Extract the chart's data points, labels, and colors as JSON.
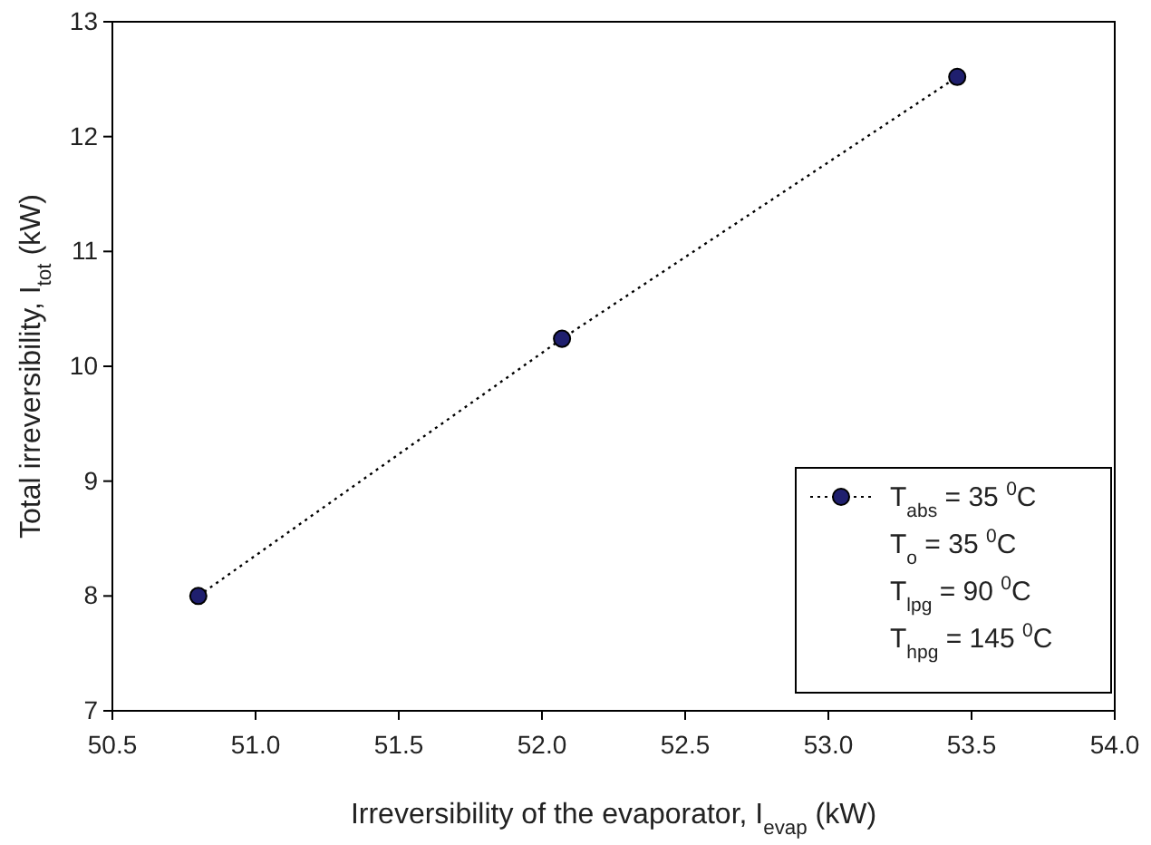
{
  "chart_data": {
    "type": "line",
    "xlabel": "Irreversibility of the evaporator, I$_{evap}$ (kW)",
    "ylabel": "Total irreversibility, I$_{tot}$ (kW)",
    "x": [
      50.8,
      52.07,
      53.45
    ],
    "series": [
      {
        "name": "T$_{abs}$ = 35  $^{0}$C",
        "color": "#1f1f6e",
        "values": [
          8.0,
          10.24,
          12.52
        ]
      }
    ],
    "marker": "circle",
    "line_style": "dotted",
    "legend": "bottom right",
    "grid": false,
    "annotations": [
      "T$_{o}$ = 35  $^{0}$C",
      "T$_{lpg}$ = 90  $^{0}$C",
      "T$_{hpg}$ = 145  $^{0}$C"
    ],
    "xlim": [
      50.5,
      54.0
    ],
    "xticks": [
      {
        "value": 50.5,
        "label": "50.5"
      },
      {
        "value": 51,
        "label": "51.0"
      },
      {
        "value": 51.5,
        "label": "51.5"
      },
      {
        "value": 52,
        "label": "52.0"
      },
      {
        "value": 52.5,
        "label": "52.5"
      },
      {
        "value": 53,
        "label": "53.0"
      },
      {
        "value": 53.5,
        "label": "53.5"
      },
      {
        "value": 54,
        "label": "54.0"
      }
    ],
    "ylim": [
      7,
      13
    ],
    "yticks": [
      7,
      8,
      9,
      10,
      11,
      12,
      13
    ]
  }
}
